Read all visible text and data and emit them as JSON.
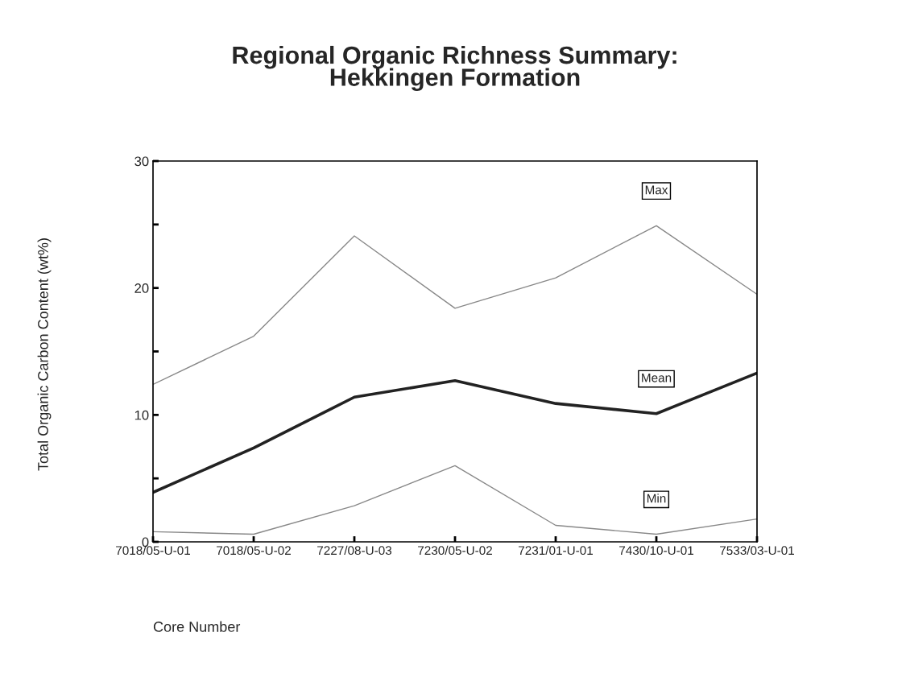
{
  "chart_data": {
    "type": "line",
    "title": "Regional Organic Richness Summary:\nHekkingen Formation",
    "xlabel": "Core Number",
    "ylabel": "Total Organic Carbon Content (wt%)",
    "categories": [
      "7018/05-U-01",
      "7018/05-U-02",
      "7227/08-U-03",
      "7230/05-U-02",
      "7231/01-U-01",
      "7430/10-U-01",
      "7533/03-U-01"
    ],
    "series": [
      {
        "name": "Max",
        "color": "#888888",
        "values": [
          12.4,
          16.2,
          24.1,
          18.4,
          20.8,
          24.9,
          19.5
        ]
      },
      {
        "name": "Mean",
        "color": "#222222",
        "values": [
          3.9,
          7.4,
          11.4,
          12.7,
          10.9,
          10.1,
          13.3
        ]
      },
      {
        "name": "Min",
        "color": "#888888",
        "values": [
          0.8,
          0.6,
          2.85,
          6.0,
          1.3,
          0.6,
          1.8
        ]
      }
    ],
    "ylim": [
      0,
      30
    ],
    "yticks": [
      0,
      {
        "value": 5,
        "label": null
      },
      10,
      {
        "value": 15,
        "label": null
      },
      20,
      {
        "value": 25,
        "label": null
      },
      30
    ],
    "grid": false,
    "legend": false,
    "marker": "none",
    "line_style": "solid"
  }
}
